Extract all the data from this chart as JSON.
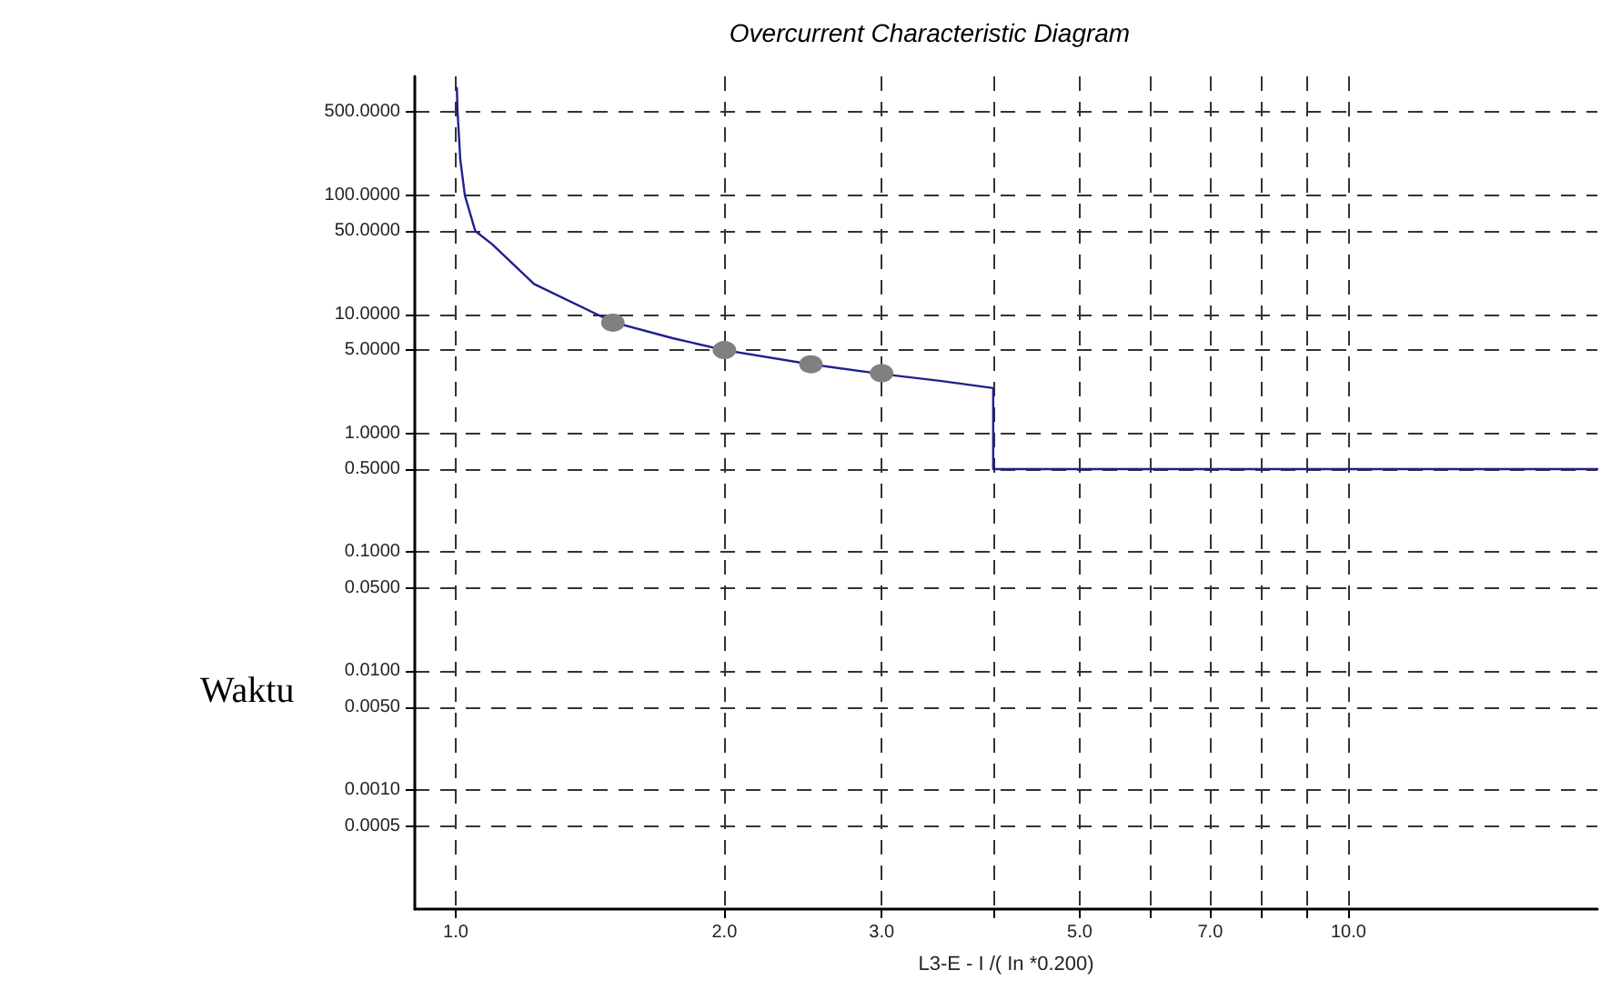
{
  "chart_data": {
    "type": "line",
    "title": "Overcurrent Characteristic Diagram",
    "xlabel": "L3-E - I /( In *0.200)",
    "ylabel": "Waktu",
    "log": "xy",
    "grid": true,
    "xlim": [
      0.9,
      19
    ],
    "ylim": [
      0.0001,
      1000
    ],
    "xticks": [
      {
        "value": 1,
        "label": "1.0"
      },
      {
        "value": 2,
        "label": "2.0"
      },
      {
        "value": 3,
        "label": "3.0"
      },
      {
        "value": 4,
        "label": null
      },
      {
        "value": 5,
        "label": "5.0"
      },
      {
        "value": 6,
        "label": null
      },
      {
        "value": 7,
        "label": "7.0"
      },
      {
        "value": 8,
        "label": null
      },
      {
        "value": 9,
        "label": null
      },
      {
        "value": 10,
        "label": "10.0"
      }
    ],
    "yticks": [
      {
        "value": 0.0005,
        "label": "0.0005"
      },
      {
        "value": 0.001,
        "label": "0.0010"
      },
      {
        "value": 0.005,
        "label": "0.0050"
      },
      {
        "value": 0.01,
        "label": "0.0100"
      },
      {
        "value": 0.05,
        "label": "0.0500"
      },
      {
        "value": 0.1,
        "label": "0.1000"
      },
      {
        "value": 0.5,
        "label": "0.5000"
      },
      {
        "value": 1,
        "label": "1.0000"
      },
      {
        "value": 5,
        "label": "5.0000"
      },
      {
        "value": 10,
        "label": "10.0000"
      },
      {
        "value": 50,
        "label": "50.0000"
      },
      {
        "value": 100,
        "label": "100.0000"
      },
      {
        "value": 500,
        "label": "500.0000"
      }
    ],
    "series": [
      {
        "color": "#1f1f8f",
        "marker": "none",
        "line_style": "solid",
        "x": [
          1.003,
          1.005,
          1.012,
          1.024,
          1.052,
          1.098,
          1.224,
          1.5,
          1.75,
          2,
          2.5,
          3,
          3.5,
          4,
          4,
          19
        ],
        "values": [
          800,
          500,
          200,
          100,
          50,
          39,
          18,
          8.6,
          6.3,
          5,
          3.8,
          3.15,
          2.75,
          2.4,
          0.5,
          0.5
        ]
      },
      {
        "type": "scatter",
        "color": "#808080",
        "marker": "circle",
        "x": [
          1.5,
          2,
          2.5,
          3
        ],
        "values": [
          8.5,
          5,
          3.8,
          3.2
        ]
      }
    ]
  }
}
